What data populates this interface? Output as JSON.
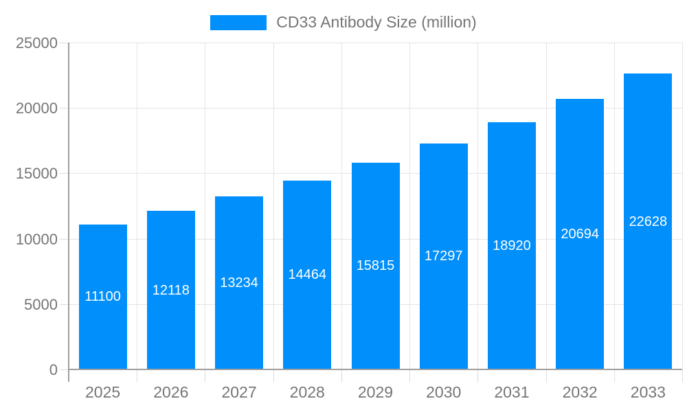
{
  "legend": {
    "label": "CD33 Antibody Size (million)"
  },
  "colors": {
    "bar": "#008FFB",
    "grid": "#E4E4E4",
    "axis": "#9E9E9E",
    "tick_mark": "#DCDCDC",
    "tick_text": "#757575",
    "value_label": "#FFFFFF",
    "background": "#FFFFFF"
  },
  "chart_data": {
    "type": "bar",
    "title": "CD33 Antibody Size (million)",
    "categories": [
      "2025",
      "2026",
      "2027",
      "2028",
      "2029",
      "2030",
      "2031",
      "2032",
      "2033"
    ],
    "values": [
      11100,
      12118,
      13234,
      14464,
      15815,
      17297,
      18920,
      20694,
      22628
    ],
    "xlabel": "",
    "ylabel": "",
    "ylim": [
      0,
      25000
    ],
    "yticks": [
      0,
      5000,
      10000,
      15000,
      20000,
      25000
    ],
    "grid": true,
    "legend_position": "top-center",
    "bar_label_position": "inside-center"
  }
}
